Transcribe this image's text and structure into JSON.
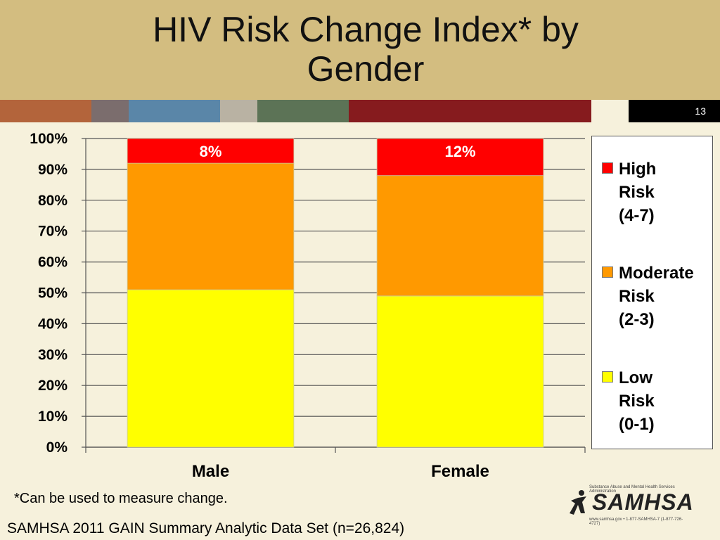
{
  "slide": {
    "title": "HIV Risk Change Index* by Gender",
    "slide_number": "13",
    "footnote": "*Can be used to measure change.",
    "source": "SAMHSA 2011 GAIN Summary Analytic Data Set (n=26,824)"
  },
  "logo": {
    "text": "SAMHSA",
    "tagline": "Substance Abuse and Mental Health Services Administration",
    "contact": "www.samhsa.gov • 1-877-SAMHSA-7 (1-877-726-4727)"
  },
  "colors": {
    "stripe": [
      "#b3643b",
      "#7b6d6d",
      "#5a86a8",
      "#b9b2a3",
      "#5c7356",
      "#861b1e",
      "#f6f1dc",
      "#000000"
    ],
    "high": "#ff0000",
    "moderate": "#ff9900",
    "low": "#ffff00"
  },
  "chart_data": {
    "type": "bar",
    "stacked": true,
    "categories": [
      "Male",
      "Female"
    ],
    "series": [
      {
        "name": "Low Risk (0-1)",
        "values": [
          51,
          49
        ],
        "color": "#ffff00"
      },
      {
        "name": "Moderate Risk (2-3)",
        "values": [
          41,
          39
        ],
        "color": "#ff9900"
      },
      {
        "name": "High Risk (4-7)",
        "values": [
          8,
          12
        ],
        "color": "#ff0000",
        "data_labels": [
          "8%",
          "12%"
        ]
      }
    ],
    "ylim": [
      0,
      100
    ],
    "yticks": [
      "0%",
      "10%",
      "20%",
      "30%",
      "40%",
      "50%",
      "60%",
      "70%",
      "80%",
      "90%",
      "100%"
    ],
    "grid": true,
    "legend": {
      "placement": "right",
      "entries": [
        {
          "line1": "High",
          "line2": "Risk",
          "line3": "(4-7)",
          "color": "#ff0000"
        },
        {
          "line1": "Moderate",
          "line2": "Risk",
          "line3": "(2-3)",
          "color": "#ff9900"
        },
        {
          "line1": "Low",
          "line2": "Risk",
          "line3": "(0-1)",
          "color": "#ffff00"
        }
      ]
    }
  }
}
